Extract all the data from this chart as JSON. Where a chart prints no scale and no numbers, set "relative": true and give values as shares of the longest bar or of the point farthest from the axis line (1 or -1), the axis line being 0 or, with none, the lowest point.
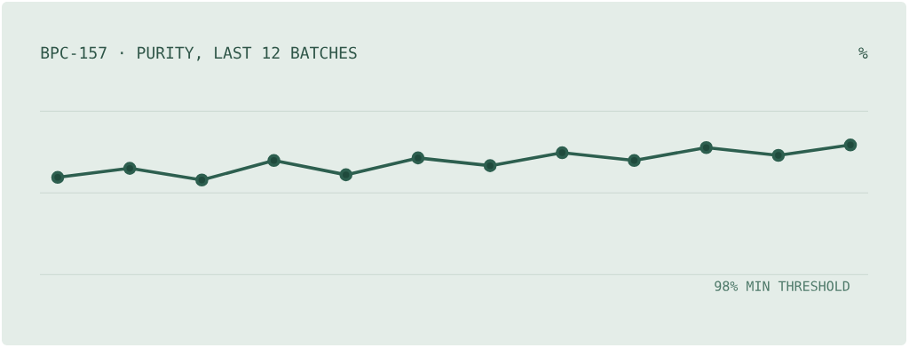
{
  "chart_data": {
    "type": "line",
    "title": "BPC-157 · PURITY, LAST 12 BATCHES",
    "annotations": [
      "%"
    ],
    "relative": true,
    "categories": [
      null,
      null,
      null,
      null,
      null,
      null,
      null,
      null,
      null,
      null,
      null,
      null
    ],
    "series": [
      {
        "color": "#2d5f4f",
        "values": [
          0.75,
          0.82,
          0.73,
          0.88,
          0.77,
          0.9,
          0.84,
          0.94,
          0.88,
          0.98,
          0.92,
          1.0
        ]
      }
    ],
    "marker": "circle",
    "line_style": "solid",
    "ref_lines": [
      {
        "axis": "y",
        "value": 0,
        "label": "98% MIN THRESHOLD",
        "color": "#cfdcd5"
      },
      {
        "axis": "y",
        "value": 0.63,
        "color": "#cfdcd5"
      },
      {
        "axis": "y",
        "value": 1.26,
        "color": "#cfdcd5"
      }
    ]
  }
}
